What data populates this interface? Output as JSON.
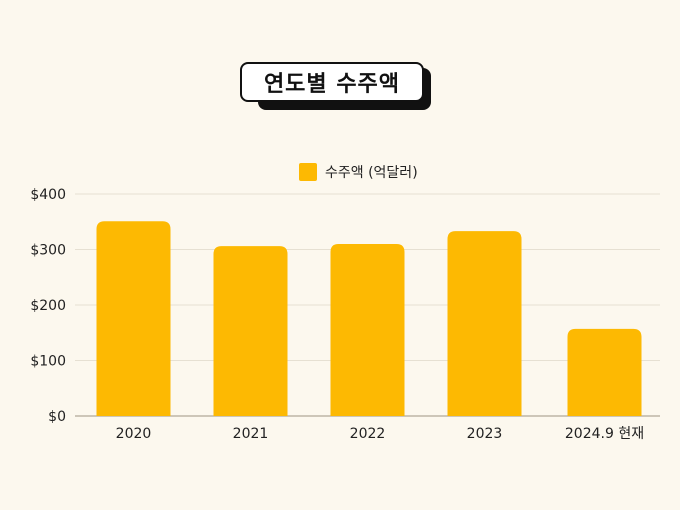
{
  "chart_data": {
    "type": "bar",
    "title": "연도별 수주액",
    "categories": [
      "2020",
      "2021",
      "2022",
      "2023",
      "2024.9 현재"
    ],
    "series": [
      {
        "name": "수주액 (억달러)",
        "values": [
          351,
          306,
          310,
          333,
          157
        ]
      }
    ],
    "ylim": [
      0,
      400
    ],
    "yticks": [
      0,
      100,
      200,
      300,
      400
    ],
    "ytick_labels": [
      "$0",
      "$100",
      "$200",
      "$300",
      "$400"
    ],
    "xlabel": "",
    "ylabel": "",
    "grid": true,
    "legend_position": "top-center",
    "colors": {
      "bar": "#fdb902",
      "grid": "#e6e0d2",
      "axis": "#bdb6a6",
      "text": "#222222",
      "background": "#fcf8ee"
    }
  }
}
